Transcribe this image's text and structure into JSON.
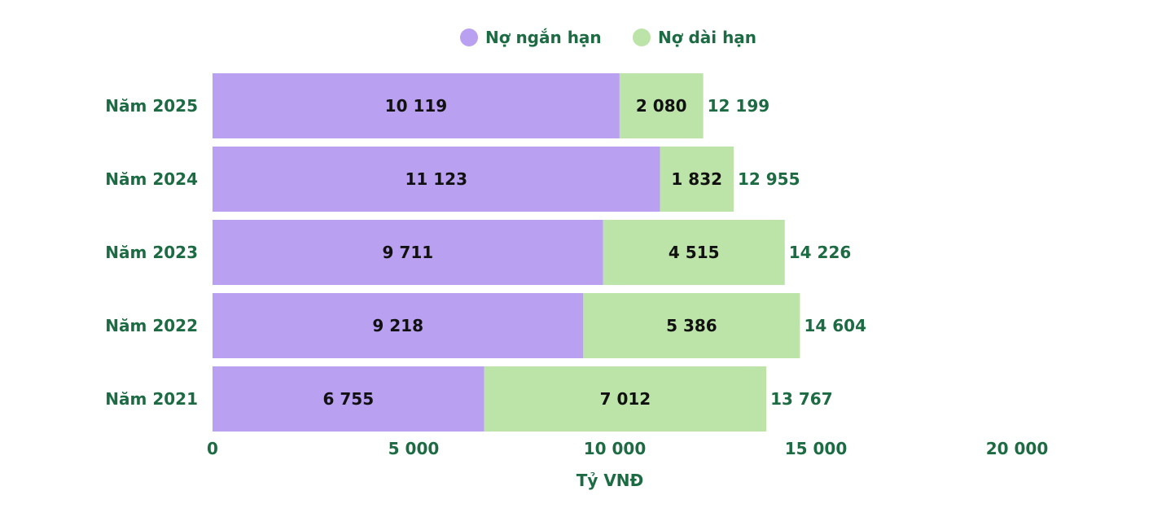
{
  "chart_data": {
    "type": "bar",
    "orientation": "horizontal",
    "stacked": true,
    "categories": [
      "Năm 2025",
      "Năm 2024",
      "Năm 2023",
      "Năm 2022",
      "Năm 2021"
    ],
    "series": [
      {
        "name": "Nợ ngắn hạn",
        "color": "#b9a0f0",
        "values": [
          10119,
          11123,
          9711,
          9218,
          6755
        ],
        "labels": [
          "10 119",
          "11 123",
          "9 711",
          "9 218",
          "6 755"
        ]
      },
      {
        "name": "Nợ dài hạn",
        "color": "#bde4a8",
        "values": [
          2080,
          1832,
          4515,
          5386,
          7012
        ],
        "labels": [
          "2 080",
          "1 832",
          "4 515",
          "5 386",
          "7 012"
        ]
      }
    ],
    "totals": [
      12199,
      12955,
      14226,
      14604,
      13767
    ],
    "total_labels": [
      "12 199",
      "12 955",
      "14 226",
      "14 604",
      "13 767"
    ],
    "xlabel": "Tỷ VNĐ",
    "xlim": [
      0,
      20000
    ],
    "xticks": [
      0,
      5000,
      10000,
      15000,
      20000
    ],
    "xtick_labels": [
      "0",
      "5 000",
      "10 000",
      "15 000",
      "20 000"
    ],
    "legend_position": "top-center",
    "grid": false,
    "text_color": "#1d6b43"
  }
}
